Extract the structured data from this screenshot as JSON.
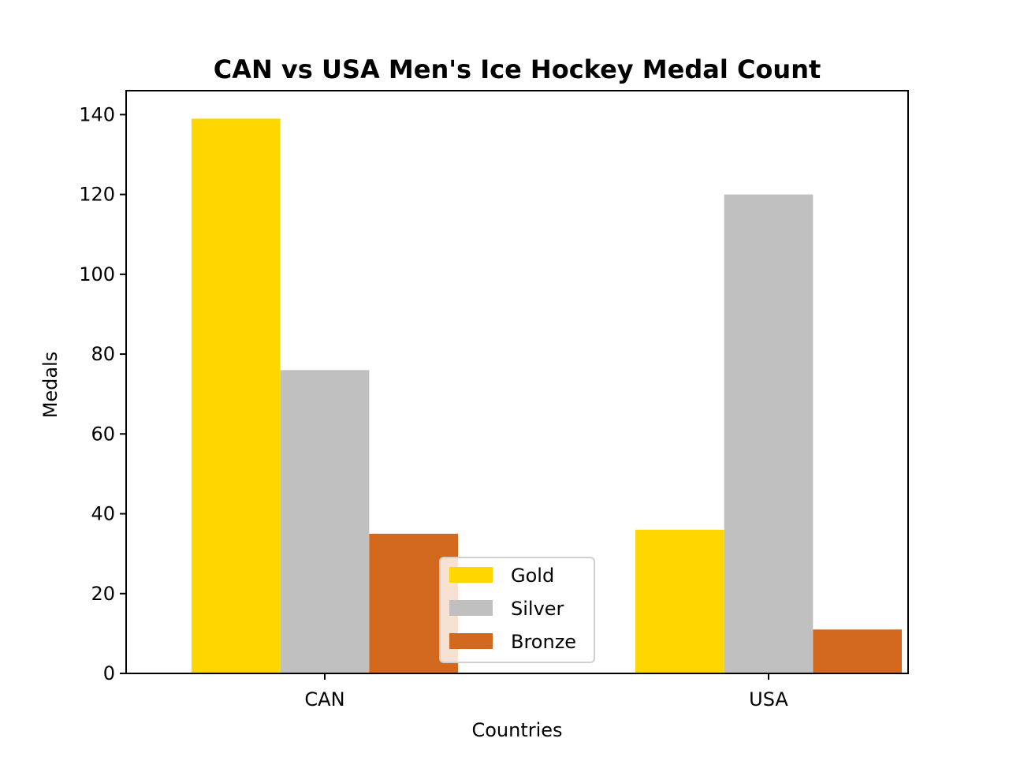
{
  "chart_data": {
    "type": "bar",
    "title": "CAN vs USA Men's Ice Hockey Medal Count",
    "xlabel": "Countries",
    "ylabel": "Medals",
    "categories": [
      "CAN",
      "USA"
    ],
    "series": [
      {
        "name": "Gold",
        "color": "#FFD700",
        "values": [
          139,
          36
        ]
      },
      {
        "name": "Silver",
        "color": "#C0C0C0",
        "values": [
          76,
          120
        ]
      },
      {
        "name": "Bronze",
        "color": "#D2691E",
        "values": [
          35,
          11
        ]
      }
    ],
    "ylim": [
      0,
      146
    ],
    "yticks": [
      0,
      20,
      40,
      60,
      80,
      100,
      120,
      140
    ],
    "grid": false,
    "legend_position": "lower center"
  }
}
